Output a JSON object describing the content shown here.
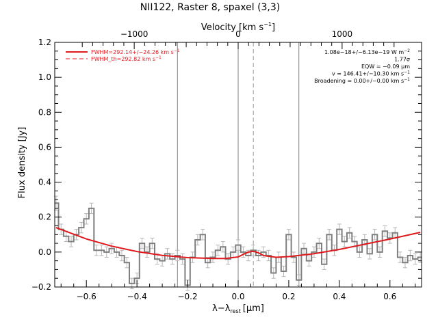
{
  "chart_data": {
    "type": "line",
    "title": "NII122, Raster 8, spaxel (3,3)",
    "xlabel": "λ−λ",
    "xlabel_sub": "rest",
    "xlabel_unit": "[μm]",
    "ylabel": "Flux density [Jy]",
    "top_axis_label": "Velocity [km s",
    "top_axis_label_sup": "−1",
    "top_axis_label_end": "]",
    "xlim": [
      -0.725,
      0.725
    ],
    "ylim": [
      -0.2,
      1.2
    ],
    "x_ticks": [
      -0.6,
      -0.4,
      -0.2,
      0.0,
      0.2,
      0.4,
      0.6
    ],
    "x_tick_labels": [
      "−0.6",
      "−0.4",
      "−0.2",
      "0.0",
      "0.2",
      "0.4",
      "0.6"
    ],
    "y_ticks": [
      -0.2,
      0.0,
      0.2,
      0.4,
      0.6,
      0.8,
      1.0,
      1.2
    ],
    "y_tick_labels": [
      "−0.2",
      "0.0",
      "0.2",
      "0.4",
      "0.6",
      "0.8",
      "1.0",
      "1.2"
    ],
    "top_ticks_km_s": [
      -1000,
      0,
      1000
    ],
    "top_tick_labels": [
      "−1000",
      "0",
      "1000"
    ],
    "km_s_per_micron": 2434,
    "vertical_lines": [
      -0.24,
      0.0,
      0.24
    ],
    "dashed_line": 0.06,
    "legend": [
      {
        "label": "FWHM=292.14+/−24.26 km s",
        "sup": "−1",
        "style": "solid",
        "color": "#e0191c"
      },
      {
        "label": "FWHM_th=292.82 km s",
        "sup": "−1",
        "style": "dashed",
        "color": "#e0191c"
      }
    ],
    "annotations": [
      {
        "text": "1.08e−18+/−6.13e−19 W m",
        "sup": "−2"
      },
      {
        "text": "1.77σ",
        "sup": ""
      },
      {
        "text": "EQW = −0.09 μm",
        "sup": ""
      },
      {
        "text": "v = 146.41+/−10.30 km s",
        "sup": "−1"
      },
      {
        "text": "Broadening = 0.00+/−0.00 km s",
        "sup": "−1"
      }
    ],
    "colors": {
      "data": "#7f7f7f",
      "fit": "#e0191c",
      "axis": "#000000"
    },
    "series": [
      {
        "name": "data",
        "x": [
          -0.72,
          -0.7,
          -0.68,
          -0.66,
          -0.64,
          -0.62,
          -0.6,
          -0.58,
          -0.56,
          -0.54,
          -0.52,
          -0.5,
          -0.48,
          -0.46,
          -0.44,
          -0.42,
          -0.4,
          -0.38,
          -0.36,
          -0.34,
          -0.32,
          -0.3,
          -0.28,
          -0.26,
          -0.24,
          -0.22,
          -0.2,
          -0.18,
          -0.16,
          -0.14,
          -0.12,
          -0.1,
          -0.08,
          -0.06,
          -0.04,
          -0.02,
          0.0,
          0.02,
          0.04,
          0.06,
          0.08,
          0.1,
          0.12,
          0.14,
          0.16,
          0.18,
          0.2,
          0.22,
          0.24,
          0.26,
          0.28,
          0.3,
          0.32,
          0.34,
          0.36,
          0.38,
          0.4,
          0.42,
          0.44,
          0.46,
          0.48,
          0.5,
          0.52,
          0.54,
          0.56,
          0.58,
          0.6,
          0.62,
          0.64,
          0.66,
          0.68,
          0.7,
          0.72
        ],
        "values": [
          0.28,
          0.13,
          0.09,
          0.06,
          0.1,
          0.14,
          0.19,
          0.25,
          0.01,
          0.01,
          0.0,
          0.02,
          0.0,
          -0.02,
          -0.06,
          -0.18,
          -0.15,
          0.05,
          0.0,
          0.05,
          -0.04,
          -0.05,
          -0.01,
          -0.04,
          -0.02,
          -0.04,
          -0.19,
          -0.03,
          0.07,
          0.1,
          -0.06,
          -0.03,
          0.01,
          0.03,
          -0.04,
          0.0,
          0.04,
          0.0,
          -0.02,
          0.01,
          -0.02,
          0.0,
          -0.02,
          -0.12,
          -0.03,
          -0.11,
          0.1,
          -0.03,
          -0.16,
          0.02,
          -0.05,
          0.0,
          0.05,
          -0.07,
          0.1,
          0.01,
          0.13,
          0.06,
          0.11,
          0.06,
          0.0,
          0.07,
          -0.01,
          0.1,
          0.0,
          0.12,
          0.08,
          0.11,
          -0.03,
          -0.06,
          -0.02,
          -0.04,
          -0.03
        ],
        "errors": [
          0.04,
          0.03,
          0.03,
          0.03,
          0.03,
          0.03,
          0.03,
          0.03,
          0.03,
          0.03,
          0.03,
          0.03,
          0.03,
          0.03,
          0.03,
          0.03,
          0.03,
          0.03,
          0.03,
          0.03,
          0.03,
          0.03,
          0.03,
          0.03,
          0.03,
          0.03,
          0.03,
          0.03,
          0.03,
          0.03,
          0.03,
          0.03,
          0.03,
          0.03,
          0.03,
          0.03,
          0.03,
          0.03,
          0.03,
          0.03,
          0.03,
          0.03,
          0.03,
          0.03,
          0.03,
          0.03,
          0.03,
          0.03,
          0.03,
          0.03,
          0.03,
          0.03,
          0.03,
          0.03,
          0.03,
          0.03,
          0.03,
          0.03,
          0.03,
          0.03,
          0.03,
          0.03,
          0.03,
          0.03,
          0.03,
          0.03,
          0.03,
          0.03,
          0.03,
          0.03,
          0.03,
          0.03,
          0.03
        ]
      },
      {
        "name": "fit",
        "x": [
          -0.72,
          -0.6,
          -0.5,
          -0.4,
          -0.3,
          -0.2,
          -0.1,
          -0.05,
          0.0,
          0.02,
          0.04,
          0.06,
          0.08,
          0.1,
          0.15,
          0.2,
          0.3,
          0.4,
          0.5,
          0.6,
          0.72
        ],
        "values": [
          0.14,
          0.075,
          0.034,
          0.003,
          -0.019,
          -0.032,
          -0.037,
          -0.037,
          -0.028,
          -0.013,
          0.0,
          0.004,
          -0.004,
          -0.02,
          -0.03,
          -0.026,
          -0.009,
          0.015,
          0.045,
          0.074,
          0.113
        ]
      }
    ]
  }
}
